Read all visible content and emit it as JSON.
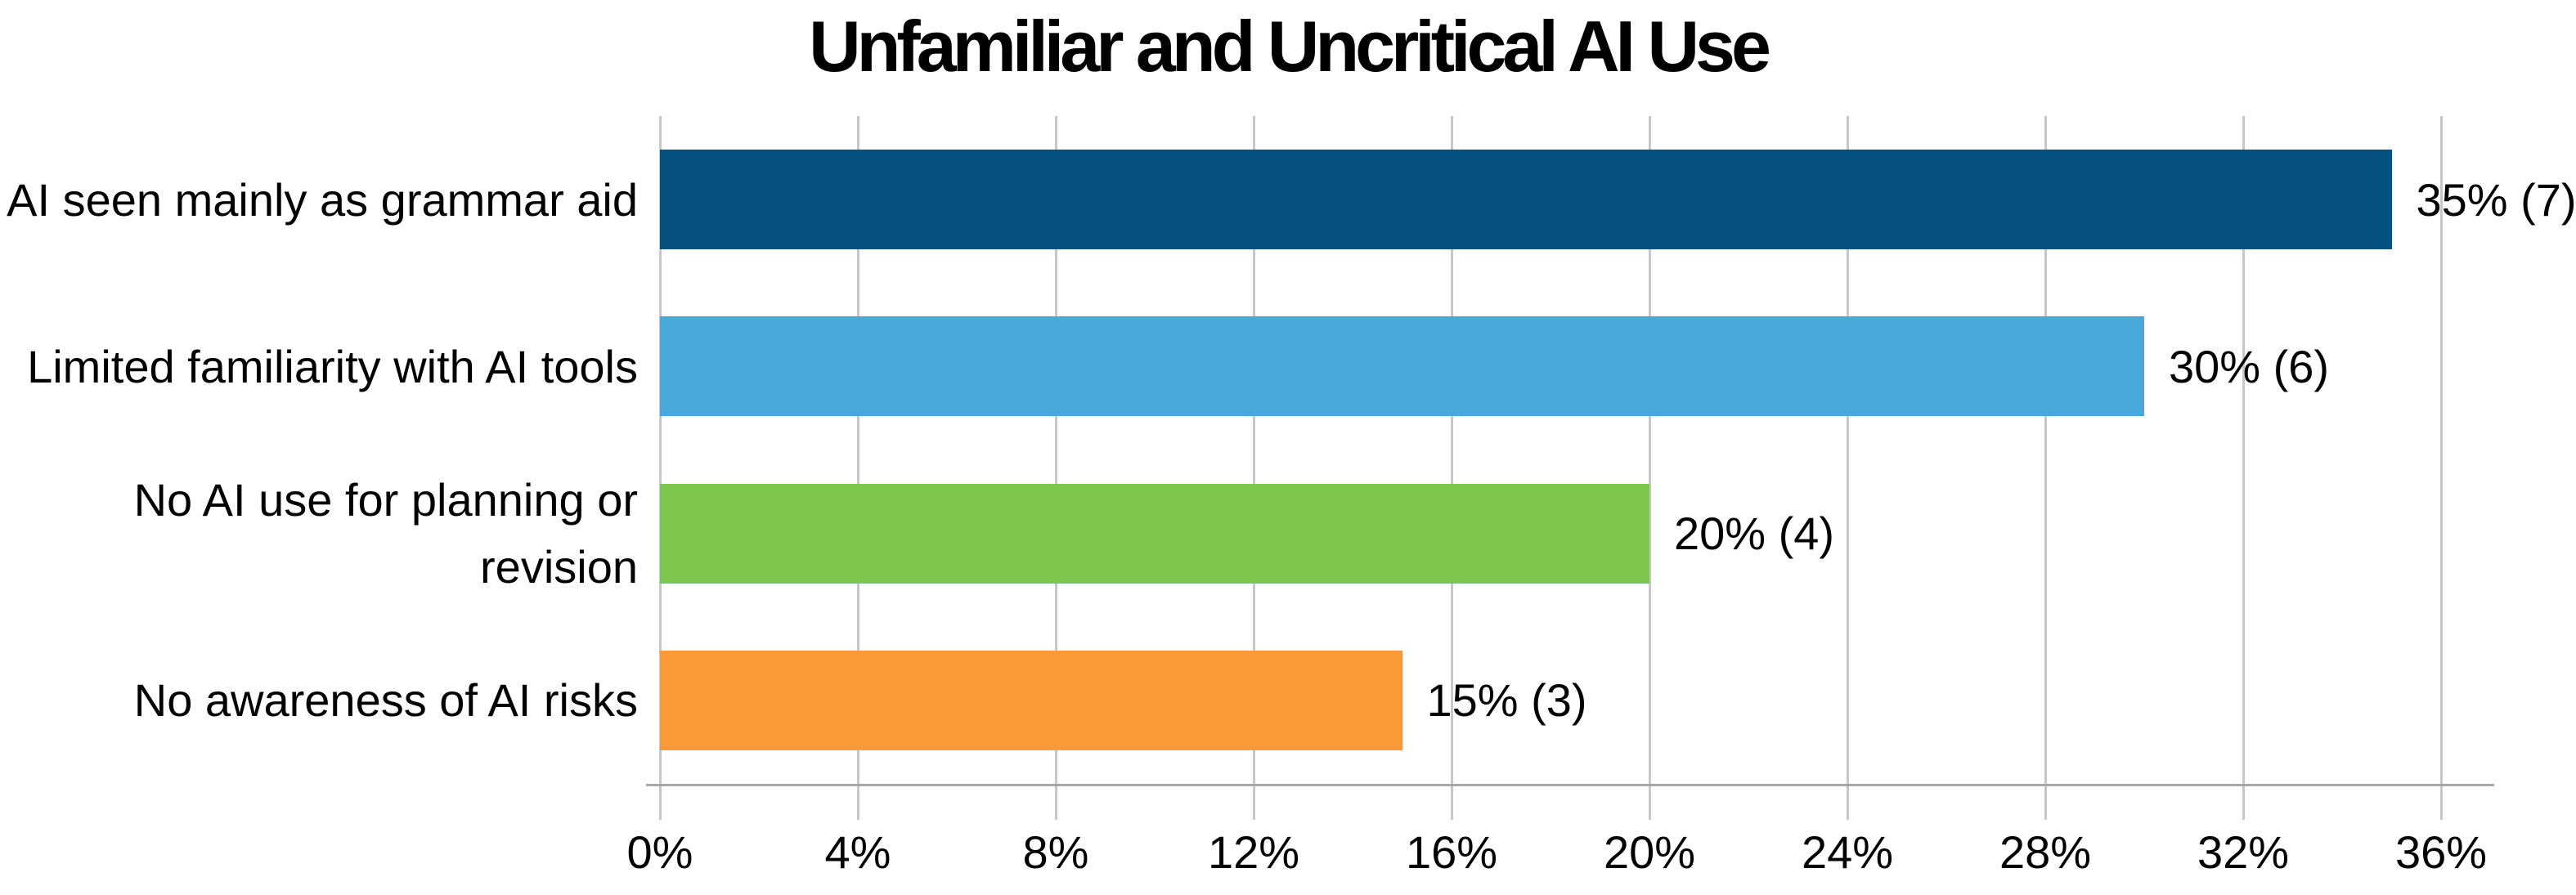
{
  "chart_data": {
    "type": "bar",
    "orientation": "horizontal",
    "title": "Unfamiliar and Uncritical AI Use",
    "categories": [
      "AI seen mainly as grammar aid",
      "Limited familiarity with AI tools",
      "No AI use for planning or revision",
      "No awareness of AI risks"
    ],
    "label_lines": [
      [
        "AI seen mainly as grammar aid"
      ],
      [
        "Limited familiarity with AI tools"
      ],
      [
        "No AI use for planning or",
        "revision"
      ],
      [
        "No awareness of AI risks"
      ]
    ],
    "values": [
      35,
      30,
      20,
      15
    ],
    "counts": [
      7,
      6,
      4,
      3
    ],
    "value_labels": [
      "35% (7)",
      "30% (6)",
      "20% (4)",
      "15% (3)"
    ],
    "bar_colors": [
      "#05517F",
      "#47A9D9",
      "#7DC74F",
      "#FB9939"
    ],
    "xlabel": "",
    "ylabel": "",
    "xlim": [
      0,
      36
    ],
    "xticks": [
      0,
      4,
      8,
      12,
      16,
      20,
      24,
      28,
      32,
      36
    ],
    "xtick_labels": [
      "0%",
      "4%",
      "8%",
      "12%",
      "16%",
      "20%",
      "24%",
      "28%",
      "32%",
      "36%"
    ],
    "grid": "vertical",
    "gridline_color": "#C7C7C7",
    "axis_line_color": "#A6A6A6",
    "text_color": "#000000",
    "background_color": "#FFFFFF",
    "legend_position": "none"
  }
}
